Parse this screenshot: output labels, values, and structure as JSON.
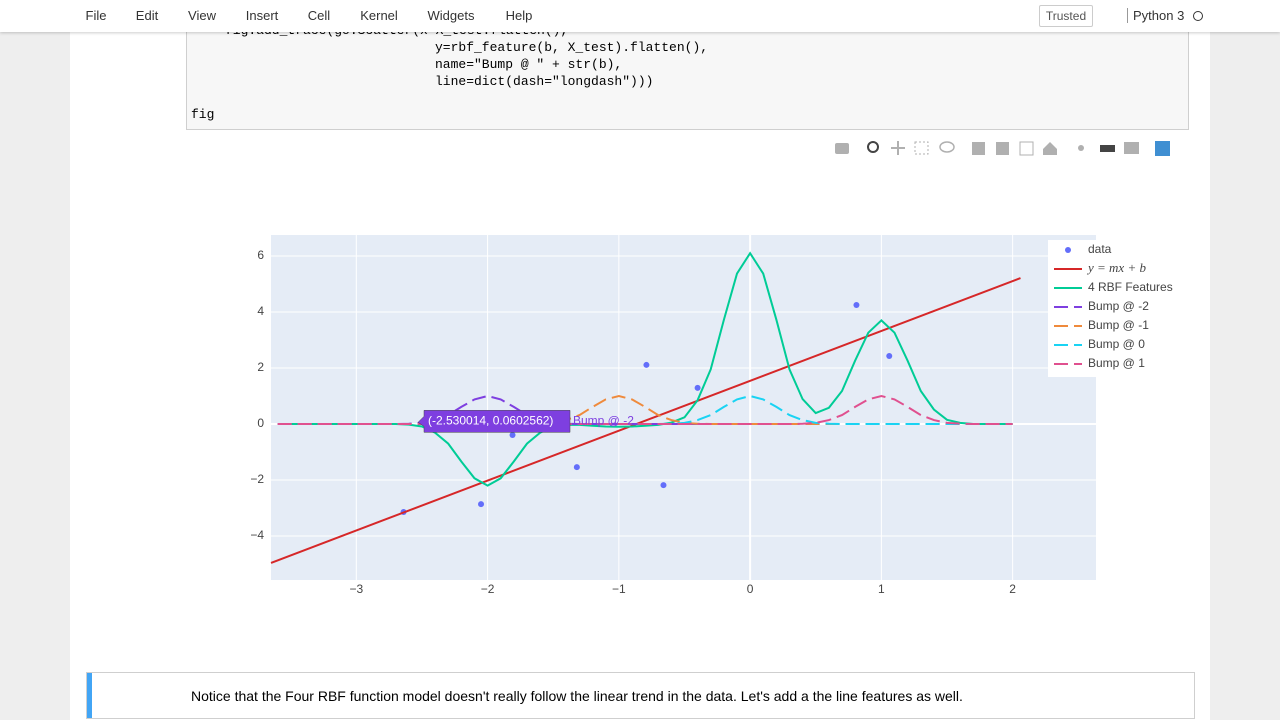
{
  "menu": {
    "items": [
      "File",
      "Edit",
      "View",
      "Insert",
      "Cell",
      "Kernel",
      "Widgets",
      "Help"
    ],
    "trusted": "Trusted",
    "kernel": "Python 3"
  },
  "code": {
    "lines": [
      "fig.add_trace(go.Scatter(x=X_test.flatten(),",
      "y=rbf_feature(b, X_test).flatten(),",
      "name=\"Bump @ \" + str(b),",
      "line=dict(dash=\"longdash\")))",
      "fig"
    ]
  },
  "chart_data": {
    "type": "scatter",
    "x": [
      -3.6,
      -3.5,
      -3.4,
      -3.3,
      -3.2,
      -3.1,
      -3,
      -2.9,
      -2.8,
      -2.7,
      -2.6,
      -2.5,
      -2.4,
      -2.3,
      -2.2,
      -2.1,
      -2,
      -1.9,
      -1.8,
      -1.7,
      -1.6,
      -1.5,
      -1.4,
      -1.3,
      -1.2,
      -1.1,
      -1,
      -0.9,
      -0.8,
      -0.7,
      -0.6,
      -0.5,
      -0.4,
      -0.3,
      -0.2,
      -0.1,
      0,
      0.1,
      0.2,
      0.3,
      0.4,
      0.5,
      0.6,
      0.7,
      0.8,
      0.9,
      1,
      1.1,
      1.2,
      1.3,
      1.4,
      1.5,
      1.6,
      1.7,
      1.8,
      1.9,
      2
    ],
    "series": [
      {
        "name": "data",
        "color": "#636efa",
        "mode": "markers",
        "x": [
          -2.64,
          -2.05,
          -1.81,
          -1.32,
          -0.79,
          -0.66,
          -0.4,
          0.81,
          1.06
        ],
        "values": [
          -3.14,
          -2.86,
          -0.39,
          -1.54,
          2.11,
          -2.18,
          1.29,
          4.25,
          2.43
        ]
      },
      {
        "name": "y = mx + b",
        "color": "#d62728",
        "mode": "lines",
        "x": [
          -3.65,
          2.06
        ],
        "values": [
          -4.96,
          5.21
        ]
      },
      {
        "name": "4 RBF Features",
        "color": "#00cc96",
        "mode": "lines",
        "values": [
          0,
          0,
          0,
          0,
          0,
          0,
          0,
          0,
          0,
          0,
          -0.02,
          -0.09,
          -0.31,
          -0.7,
          -1.34,
          -1.94,
          -2.2,
          -1.94,
          -1.34,
          -0.7,
          -0.31,
          -0.09,
          -0.03,
          -0.03,
          -0.06,
          -0.09,
          -0.1,
          -0.09,
          -0.06,
          -0.03,
          0.05,
          0.24,
          0.85,
          1.95,
          3.72,
          5.37,
          6.1,
          5.37,
          3.72,
          1.95,
          0.89,
          0.39,
          0.58,
          1.18,
          2.26,
          3.26,
          3.7,
          3.26,
          2.26,
          1.18,
          0.52,
          0.15,
          0.04,
          0,
          0,
          0,
          0
        ]
      },
      {
        "name": "Bump @ -2",
        "color": "#7e3fe0",
        "mode": "dash",
        "values": [
          0,
          0,
          0,
          0,
          0,
          0,
          0,
          0,
          0,
          0,
          0.01,
          0.04,
          0.14,
          0.32,
          0.61,
          0.88,
          1,
          0.88,
          0.61,
          0.32,
          0.14,
          0.04,
          0.01,
          0,
          0,
          0,
          0,
          0,
          0,
          0,
          0,
          0,
          0,
          0,
          0,
          0,
          0,
          0,
          0,
          0,
          0,
          0,
          0,
          0,
          0,
          0,
          0,
          0,
          0,
          0,
          0,
          0,
          0,
          0,
          0,
          0,
          0
        ]
      },
      {
        "name": "Bump @ -1",
        "color": "#ef8a3c",
        "mode": "dash",
        "values": [
          0,
          0,
          0,
          0,
          0,
          0,
          0,
          0,
          0,
          0,
          0,
          0,
          0,
          0,
          0,
          0,
          0,
          0,
          0,
          0,
          0.01,
          0.04,
          0.14,
          0.32,
          0.61,
          0.88,
          1,
          0.88,
          0.61,
          0.32,
          0.14,
          0.04,
          0.01,
          0,
          0,
          0,
          0,
          0,
          0,
          0,
          0,
          0,
          0,
          0,
          0,
          0,
          0,
          0,
          0,
          0,
          0,
          0,
          0,
          0,
          0,
          0,
          0
        ]
      },
      {
        "name": "Bump @ 0",
        "color": "#19d3f3",
        "mode": "dash",
        "values": [
          0,
          0,
          0,
          0,
          0,
          0,
          0,
          0,
          0,
          0,
          0,
          0,
          0,
          0,
          0,
          0,
          0,
          0,
          0,
          0,
          0,
          0,
          0,
          0,
          0,
          0,
          0,
          0,
          0,
          0,
          0.01,
          0.04,
          0.14,
          0.32,
          0.61,
          0.88,
          1,
          0.88,
          0.61,
          0.32,
          0.14,
          0.04,
          0.01,
          0,
          0,
          0,
          0,
          0,
          0,
          0,
          0,
          0,
          0,
          0,
          0,
          0,
          0
        ]
      },
      {
        "name": "Bump @ 1",
        "color": "#e0508f",
        "mode": "dash",
        "values": [
          0,
          0,
          0,
          0,
          0,
          0,
          0,
          0,
          0,
          0,
          0,
          0,
          0,
          0,
          0,
          0,
          0,
          0,
          0,
          0,
          0,
          0,
          0,
          0,
          0,
          0,
          0,
          0,
          0,
          0,
          0,
          0,
          0,
          0,
          0,
          0,
          0,
          0,
          0,
          0,
          0.01,
          0.04,
          0.14,
          0.32,
          0.61,
          0.88,
          1,
          0.88,
          0.61,
          0.32,
          0.14,
          0.04,
          0.01,
          0,
          0,
          0,
          0
        ]
      }
    ],
    "xlim": [
      -3.65,
      2.635
    ],
    "ylim": [
      -5.57,
      6.75
    ],
    "xticks": [
      {
        "value": -3,
        "label": "−3"
      },
      {
        "value": -2,
        "label": "−2"
      },
      {
        "value": -1,
        "label": "−1"
      },
      0,
      1,
      2
    ],
    "yticks": [
      {
        "value": -4,
        "label": "−4"
      },
      {
        "value": -2,
        "label": "−2"
      },
      0,
      2,
      4,
      6
    ],
    "grid": true,
    "legend": "right",
    "hover": {
      "x": -2.530014,
      "y": 0.0602562,
      "label": "(-2.530014, 0.0602562)",
      "series": 3
    }
  },
  "markdown": {
    "text": "Notice that the Four RBF function model doesn't really follow the linear trend in the data. Let's add a the line features as well."
  }
}
